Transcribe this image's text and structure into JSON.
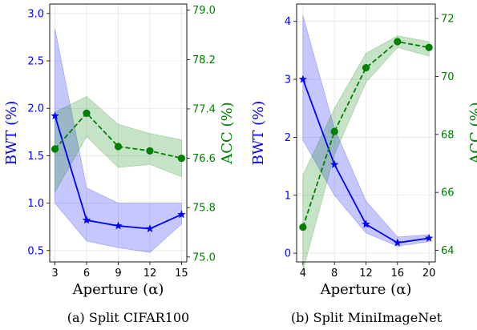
{
  "chart_data": [
    {
      "type": "line",
      "caption": "(a) Split CIFAR100",
      "xlabel": "Aperture (α)",
      "x": [
        3,
        6,
        9,
        12,
        15
      ],
      "xlim": [
        2.5,
        15.5
      ],
      "xticks": [
        "3",
        "6",
        "9",
        "12",
        "15"
      ],
      "y_left": {
        "label": "BWT (%)",
        "color": "#0000ff",
        "lim": [
          0.38,
          3.1
        ],
        "ticks": [
          "0.5",
          "1.0",
          "1.5",
          "2.0",
          "2.5",
          "3.0"
        ],
        "values": [
          1.92,
          0.82,
          0.76,
          0.73,
          0.88
        ],
        "band_low": [
          1.0,
          0.6,
          0.53,
          0.48,
          0.78
        ],
        "band_high": [
          2.84,
          1.16,
          1.0,
          1.0,
          1.0
        ],
        "marker": "star",
        "linestyle": "solid"
      },
      "y_right": {
        "label": "ACC (%)",
        "color": "#008000",
        "lim": [
          74.92,
          79.1
        ],
        "ticks": [
          "75.0",
          "75.8",
          "76.6",
          "77.4",
          "78.2",
          "79.0"
        ],
        "values": [
          76.75,
          77.33,
          76.79,
          76.72,
          76.6
        ],
        "band_low": [
          76.05,
          76.95,
          76.45,
          76.5,
          76.3
        ],
        "band_high": [
          77.35,
          77.6,
          77.15,
          77.0,
          76.9
        ],
        "marker": "circle",
        "linestyle": "dashed"
      }
    },
    {
      "type": "line",
      "caption": "(b) Split MiniImageNet",
      "xlabel": "Aperture (α)",
      "x": [
        4,
        8,
        12,
        16,
        20
      ],
      "xlim": [
        3.2,
        20.8
      ],
      "xticks": [
        "4",
        "8",
        "12",
        "16",
        "20"
      ],
      "y_left": {
        "label": "BWT (%)",
        "color": "#0000ff",
        "lim": [
          -0.15,
          4.3
        ],
        "ticks": [
          "0",
          "1",
          "2",
          "3",
          "4"
        ],
        "values": [
          3.0,
          1.53,
          0.5,
          0.18,
          0.26
        ],
        "band_low": [
          1.95,
          1.0,
          0.35,
          0.12,
          0.2
        ],
        "band_high": [
          4.1,
          2.15,
          0.9,
          0.28,
          0.32
        ],
        "marker": "star",
        "linestyle": "solid"
      },
      "y_right": {
        "label": "ACC (%)",
        "color": "#008000",
        "lim": [
          63.6,
          72.5
        ],
        "ticks": [
          "64",
          "66",
          "68",
          "70",
          "72"
        ],
        "values": [
          64.8,
          68.1,
          70.3,
          71.2,
          71.0
        ],
        "band_low": [
          63.3,
          67.3,
          69.8,
          71.0,
          70.7
        ],
        "band_high": [
          66.6,
          68.9,
          70.8,
          71.4,
          71.2
        ],
        "marker": "circle",
        "linestyle": "dashed"
      }
    }
  ]
}
